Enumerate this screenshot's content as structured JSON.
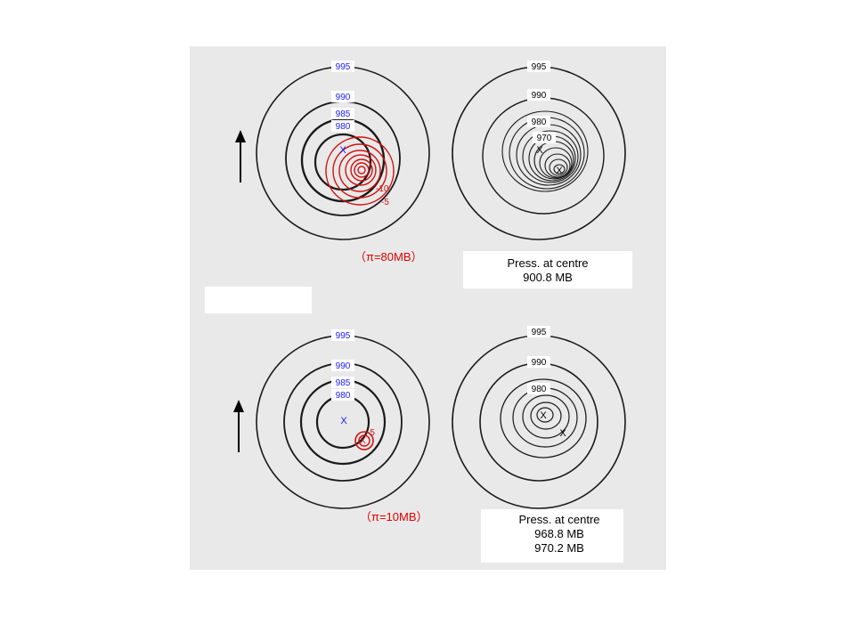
{
  "colors": {
    "contour": "#1a1a1a",
    "label_blue": "#1a1aff",
    "perturbation": "#d01010",
    "scan_gray": "#e9e9e9"
  },
  "panels": {
    "top_left": {
      "labels": [
        "995",
        "990",
        "985",
        "980"
      ],
      "centre_mark": "X",
      "perturbation_labels": [
        "-10",
        "-5"
      ],
      "pi_label": "（π=80MB）"
    },
    "top_right": {
      "labels": [
        "995",
        "990",
        "980",
        "970"
      ],
      "centre_marks": [
        "X",
        "X"
      ],
      "caption_title": "Press. at centre",
      "caption_values": [
        "900.8 MB"
      ]
    },
    "bottom_left": {
      "labels": [
        "995",
        "990",
        "985",
        "980"
      ],
      "centre_mark": "X",
      "perturbation_labels": [
        "-5"
      ],
      "pi_label": "（π=10MB）"
    },
    "bottom_right": {
      "labels": [
        "995",
        "990",
        "980"
      ],
      "centre_marks": [
        "X",
        "X"
      ],
      "caption_title": "Press. at centre",
      "caption_values": [
        "968.8 MB",
        "970.2 MB"
      ]
    }
  }
}
